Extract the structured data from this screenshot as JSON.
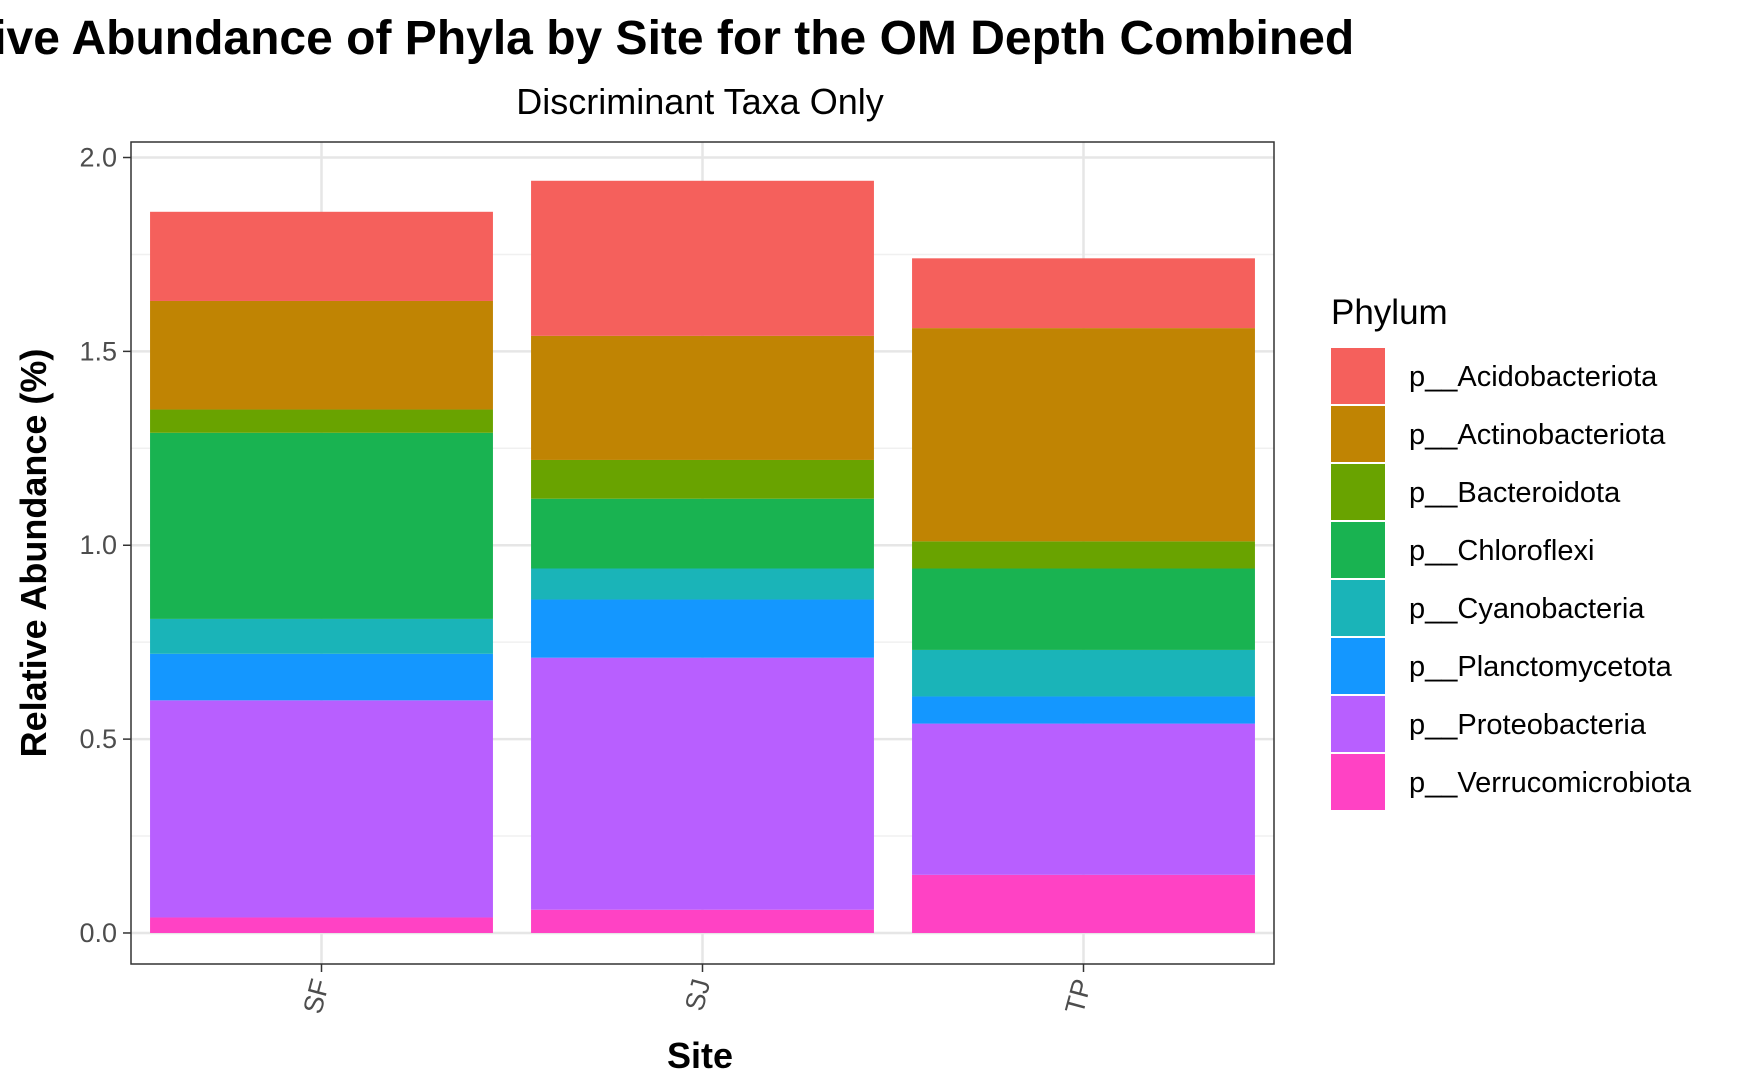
{
  "chart_data": {
    "type": "bar",
    "stacked": true,
    "title": "Relative Abundance of Phyla by Site for the OM Depth Combined",
    "subtitle": "Discriminant Taxa Only",
    "xlabel": "Site",
    "ylabel": "Relative Abundance (%)",
    "ylim": [
      -0.08,
      2.04
    ],
    "yticks": [
      "0.0",
      "0.5",
      "1.0",
      "1.5",
      "2.0"
    ],
    "grid": true,
    "legend_title": "Phylum",
    "legend_position": "right",
    "categories": [
      "SF",
      "SJ",
      "TP"
    ],
    "series": [
      {
        "name": "p__Verrucomicrobiota",
        "color": "#FF42C4",
        "values": [
          0.04,
          0.06,
          0.15
        ]
      },
      {
        "name": "p__Proteobacteria",
        "color": "#B85FFF",
        "values": [
          0.56,
          0.65,
          0.39
        ]
      },
      {
        "name": "p__Planctomycetota",
        "color": "#1497FF",
        "values": [
          0.12,
          0.15,
          0.07
        ]
      },
      {
        "name": "p__Cyanobacteria",
        "color": "#1AB4B8",
        "values": [
          0.09,
          0.08,
          0.12
        ]
      },
      {
        "name": "p__Chloroflexi",
        "color": "#19B351",
        "values": [
          0.48,
          0.18,
          0.21
        ]
      },
      {
        "name": "p__Bacteroidota",
        "color": "#69A300",
        "values": [
          0.06,
          0.1,
          0.07
        ]
      },
      {
        "name": "p__Actinobacteriota",
        "color": "#C08403",
        "values": [
          0.28,
          0.32,
          0.55
        ]
      },
      {
        "name": "p__Acidobacteriota",
        "color": "#F5605C",
        "values": [
          0.23,
          0.4,
          0.18
        ]
      }
    ],
    "legend_order": [
      "p__Acidobacteriota",
      "p__Actinobacteriota",
      "p__Bacteroidota",
      "p__Chloroflexi",
      "p__Cyanobacteria",
      "p__Planctomycetota",
      "p__Proteobacteria",
      "p__Verrucomicrobiota"
    ]
  }
}
